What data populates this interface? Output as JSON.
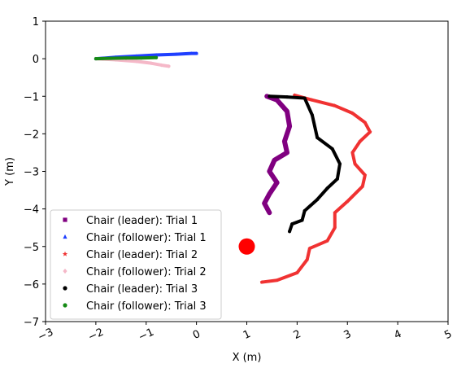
{
  "chart_data": {
    "type": "scatter",
    "title": "",
    "xlabel": "X (m)",
    "ylabel": "Y (m)",
    "xlim": [
      -3,
      5
    ],
    "ylim": [
      -7,
      1
    ],
    "xticks": [
      -3,
      -2,
      -1,
      0,
      1,
      2,
      3,
      4,
      5
    ],
    "yticks": [
      1,
      0,
      -1,
      -2,
      -3,
      -4,
      -5,
      -6,
      -7
    ],
    "xtick_labels": [
      "−3",
      "−2",
      "−1",
      "0",
      "1",
      "2",
      "3",
      "4",
      "5"
    ],
    "ytick_labels": [
      "1",
      "0",
      "−1",
      "−2",
      "−3",
      "−4",
      "−5",
      "−6",
      "−7"
    ],
    "legend_position": "lower-left",
    "series": [
      {
        "name": "Chair (leader): Trial 1",
        "marker": "square",
        "color": "#800080",
        "points": [
          [
            1.4,
            -1.0
          ],
          [
            1.6,
            -1.1
          ],
          [
            1.8,
            -1.4
          ],
          [
            1.85,
            -1.8
          ],
          [
            1.75,
            -2.2
          ],
          [
            1.8,
            -2.5
          ],
          [
            1.55,
            -2.7
          ],
          [
            1.45,
            -3.0
          ],
          [
            1.6,
            -3.3
          ],
          [
            1.45,
            -3.6
          ],
          [
            1.35,
            -3.85
          ],
          [
            1.45,
            -4.1
          ]
        ]
      },
      {
        "name": "Chair (follower): Trial 1",
        "marker": "triangle",
        "color": "#1f3fff",
        "points": [
          [
            -2.0,
            0.0
          ],
          [
            -1.6,
            0.04
          ],
          [
            -1.2,
            0.07
          ],
          [
            -0.8,
            0.1
          ],
          [
            -0.4,
            0.12
          ],
          [
            -0.1,
            0.14
          ],
          [
            0.0,
            0.14
          ]
        ]
      },
      {
        "name": "Chair (leader): Trial 2",
        "marker": "star",
        "color": "#f03232",
        "points": [
          [
            1.95,
            -0.97
          ],
          [
            2.3,
            -1.1
          ],
          [
            2.75,
            -1.25
          ],
          [
            3.1,
            -1.45
          ],
          [
            3.35,
            -1.7
          ],
          [
            3.45,
            -1.95
          ],
          [
            3.25,
            -2.2
          ],
          [
            3.1,
            -2.5
          ],
          [
            3.15,
            -2.8
          ],
          [
            3.35,
            -3.1
          ],
          [
            3.3,
            -3.4
          ],
          [
            3.0,
            -3.8
          ],
          [
            2.75,
            -4.1
          ],
          [
            2.75,
            -4.5
          ],
          [
            2.6,
            -4.85
          ],
          [
            2.25,
            -5.05
          ],
          [
            2.2,
            -5.35
          ],
          [
            2.0,
            -5.7
          ],
          [
            1.6,
            -5.9
          ],
          [
            1.3,
            -5.95
          ]
        ]
      },
      {
        "name": "Chair (follower): Trial 2",
        "marker": "diamond",
        "color": "#f5b8c8",
        "points": [
          [
            -2.0,
            0.0
          ],
          [
            -1.6,
            -0.03
          ],
          [
            -1.2,
            -0.07
          ],
          [
            -0.9,
            -0.12
          ],
          [
            -0.7,
            -0.17
          ],
          [
            -0.55,
            -0.2
          ]
        ]
      },
      {
        "name": "Chair (leader): Trial 3",
        "marker": "circle",
        "color": "#000000",
        "points": [
          [
            1.45,
            -1.0
          ],
          [
            1.8,
            -1.02
          ],
          [
            2.15,
            -1.05
          ],
          [
            2.3,
            -1.5
          ],
          [
            2.4,
            -2.1
          ],
          [
            2.7,
            -2.4
          ],
          [
            2.85,
            -2.8
          ],
          [
            2.8,
            -3.2
          ],
          [
            2.6,
            -3.45
          ],
          [
            2.4,
            -3.75
          ],
          [
            2.15,
            -4.05
          ],
          [
            2.1,
            -4.3
          ],
          [
            1.9,
            -4.4
          ],
          [
            1.85,
            -4.6
          ]
        ]
      },
      {
        "name": "Chair (follower): Trial 3",
        "marker": "circle",
        "color": "#158a15",
        "points": [
          [
            -2.0,
            0.0
          ],
          [
            -1.7,
            0.01
          ],
          [
            -1.4,
            0.02
          ],
          [
            -1.1,
            0.02
          ],
          [
            -0.8,
            0.03
          ]
        ]
      }
    ],
    "annotations": [
      {
        "type": "marker",
        "x": 1.0,
        "y": -5.0,
        "color": "#ff0000",
        "shape": "circle"
      }
    ]
  }
}
